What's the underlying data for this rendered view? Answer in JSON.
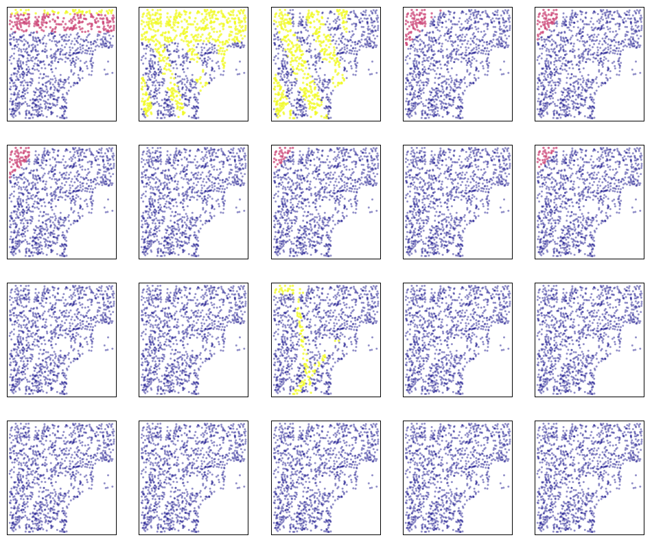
{
  "chart_data": {
    "type": "scatter",
    "layout": {
      "rows": 4,
      "cols": 5
    },
    "axes_visible": false,
    "grid": false,
    "colormap": "plasma",
    "colors": {
      "low": "#0d0887",
      "mid": "#cc4778",
      "high": "#f0f921",
      "frame": "#000000"
    },
    "panels": [
      {
        "index": 1,
        "hotspot": "upper-band",
        "intensity": 0.85
      },
      {
        "index": 2,
        "hotspot": "left-stripes",
        "intensity": 0.95
      },
      {
        "index": 3,
        "hotspot": "left-wide-stripes",
        "intensity": 1.0
      },
      {
        "index": 4,
        "hotspot": "upper-left",
        "intensity": 0.55
      },
      {
        "index": 5,
        "hotspot": "upper-left",
        "intensity": 0.5
      },
      {
        "index": 6,
        "hotspot": "upper-left",
        "intensity": 0.5
      },
      {
        "index": 7,
        "hotspot": "sparse-left",
        "intensity": 0.35
      },
      {
        "index": 8,
        "hotspot": "upper-left",
        "intensity": 0.45
      },
      {
        "index": 9,
        "hotspot": "none",
        "intensity": 0.0
      },
      {
        "index": 10,
        "hotspot": "upper-left",
        "intensity": 0.45
      },
      {
        "index": 11,
        "hotspot": "none",
        "intensity": 0.0
      },
      {
        "index": 12,
        "hotspot": "none",
        "intensity": 0.0
      },
      {
        "index": 13,
        "hotspot": "thin-lines",
        "intensity": 0.9
      },
      {
        "index": 14,
        "hotspot": "none",
        "intensity": 0.0
      },
      {
        "index": 15,
        "hotspot": "none",
        "intensity": 0.0
      },
      {
        "index": 16,
        "hotspot": "none",
        "intensity": 0.0
      },
      {
        "index": 17,
        "hotspot": "none",
        "intensity": 0.0
      },
      {
        "index": 18,
        "hotspot": "none",
        "intensity": 0.0
      },
      {
        "index": 19,
        "hotspot": "none",
        "intensity": 0.0
      },
      {
        "index": 20,
        "hotspot": "none",
        "intensity": 0.0
      }
    ]
  }
}
